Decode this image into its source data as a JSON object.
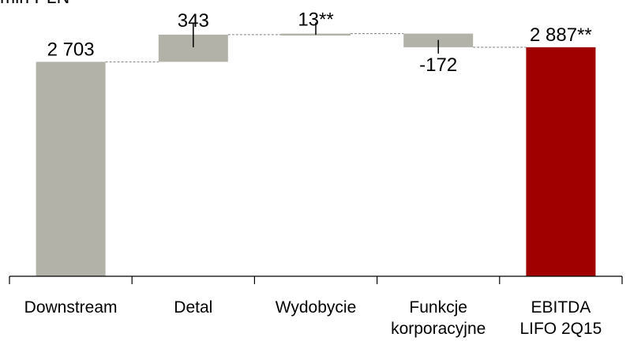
{
  "chart_data": {
    "type": "bar",
    "variant": "waterfall",
    "unit_label": "mln PLN",
    "categories": [
      [
        "Downstream"
      ],
      [
        "Detal"
      ],
      [
        "Wydobycie"
      ],
      [
        "Funkcje",
        "korporacyjne"
      ],
      [
        "EBITDA",
        "LIFO 2Q15"
      ]
    ],
    "values": [
      2703,
      343,
      13,
      -172,
      2887
    ],
    "value_labels": [
      "2 703",
      "343",
      "13**",
      "-172",
      "2 887**"
    ],
    "kinds": [
      "total",
      "delta",
      "delta",
      "delta",
      "total"
    ],
    "colors": {
      "bar": "#b2b2a9",
      "total_final": "#a00000",
      "connector": "#808080",
      "axis": "#000000"
    },
    "ylim": [
      0,
      3300
    ],
    "grid": false,
    "legend": "none"
  }
}
